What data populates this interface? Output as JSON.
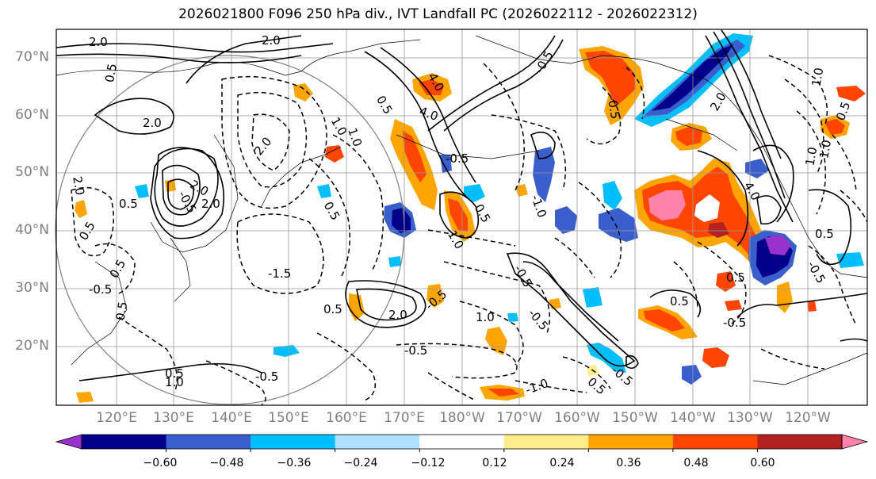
{
  "title": "2026021800 F096 250 hPa div., IVT Landfall PC (2026022112 - 2026022312)",
  "lat_labels": [
    "70°N",
    "60°N",
    "50°N",
    "40°N",
    "30°N",
    "20°N"
  ],
  "lon_labels": [
    "120°E",
    "130°E",
    "140°E",
    "150°E",
    "160°E",
    "170°E",
    "180°W",
    "170°W",
    "160°W",
    "150°W",
    "140°W",
    "130°W",
    "120°W"
  ],
  "colorbar": {
    "labels": [
      "−0.60",
      "−0.48",
      "−0.36",
      "−0.24",
      "−0.12",
      "0.12",
      "0.24",
      "0.36",
      "0.48",
      "0.60"
    ],
    "colors": [
      "#9932cc",
      "#00008b",
      "#3a5fcd",
      "#00bfff",
      "#b0e2ff",
      "#ffffff",
      "#ffec8b",
      "#ffa500",
      "#ff4500",
      "#b22222",
      "#ff82ab"
    ]
  },
  "contour_labels": [
    "2.0",
    "2.0",
    "0.5",
    "2.0",
    "2.0",
    "0.5",
    "2.0",
    "-0.5",
    "0.5",
    "-1.5",
    "0.5",
    "2.0",
    "-0.5",
    "1.0",
    "-0.5",
    "0.5",
    "4.0",
    "1.0",
    "2.0",
    "4.0",
    "0.5",
    "0.5",
    "-0.5",
    "-0.5",
    "1.0",
    "-0.5",
    "0.5",
    "-1.0",
    "0.5",
    "-1.0",
    "-0.5",
    "0.5",
    "1.0",
    "1.0",
    "-0.5",
    "0.5",
    "1.0",
    "4.0",
    "2.0",
    "-0.5",
    "-0.5",
    "0.5",
    "1.0",
    "-0.5",
    "0.5",
    "2.0",
    "0.5",
    "-0.5",
    "1.0",
    "-0.5",
    "0.5"
  ]
}
